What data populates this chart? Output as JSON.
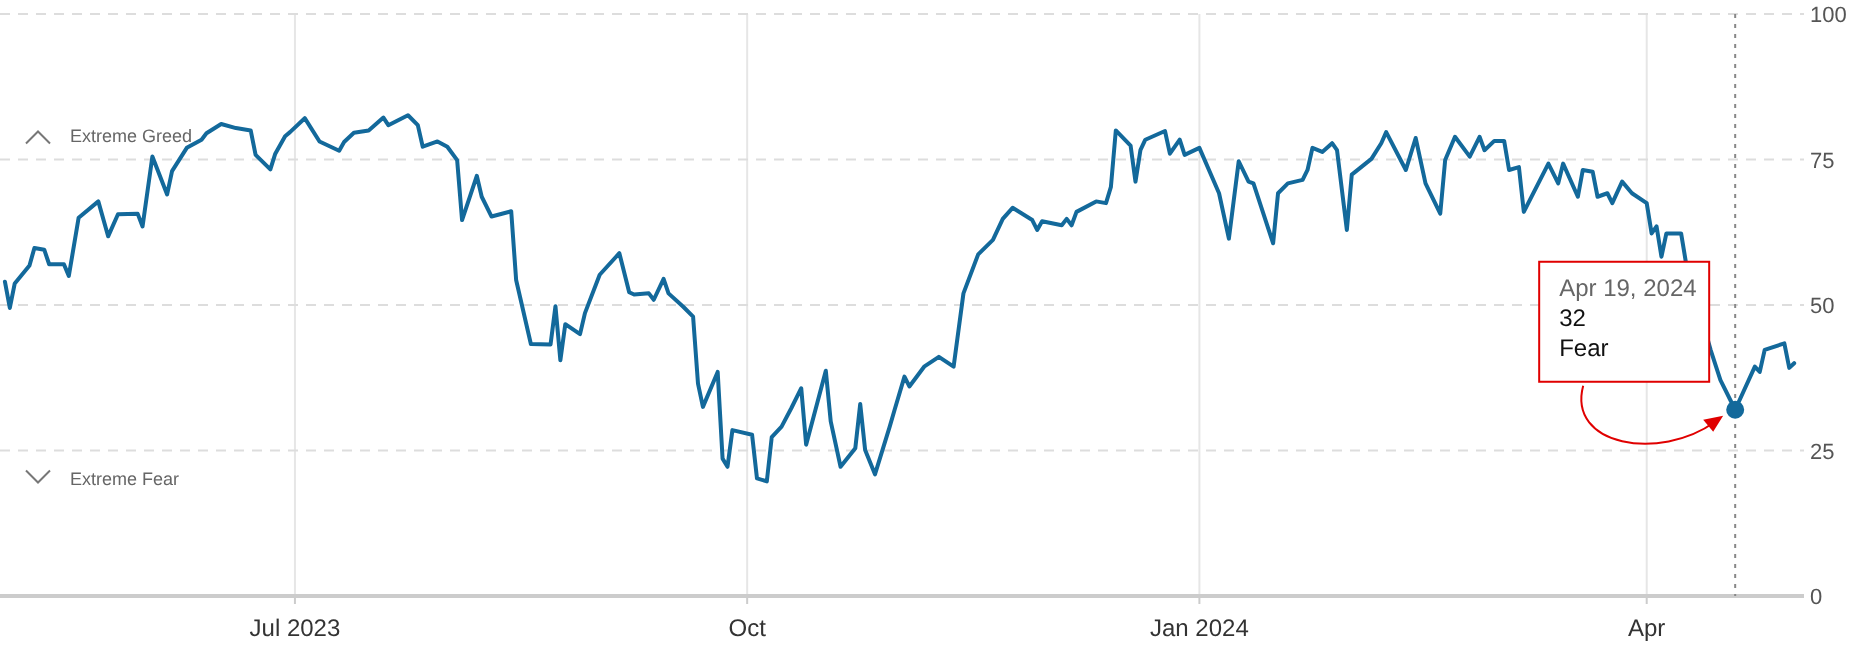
{
  "chart_data": {
    "type": "line",
    "xlim": [
      "2023-05-02",
      "2024-05-03"
    ],
    "ylim": [
      0,
      100
    ],
    "xticks": [
      {
        "value": "2023-07-01",
        "label": "Jul 2023"
      },
      {
        "value": "2023-10-01",
        "label": "Oct"
      },
      {
        "value": "2024-01-01",
        "label": "Jan 2024"
      },
      {
        "value": "2024-04-01",
        "label": "Apr"
      }
    ],
    "yticks": [
      0,
      25,
      50,
      75,
      100
    ],
    "grid": true,
    "marker": "none",
    "line_style": "solid",
    "series": [
      {
        "color": "#13699b",
        "x": [
          "2023-05-03",
          "2023-05-04",
          "2023-05-05",
          "2023-05-08",
          "2023-05-09",
          "2023-05-11",
          "2023-05-12",
          "2023-05-15",
          "2023-05-16",
          "2023-05-18",
          "2023-05-22",
          "2023-05-24",
          "2023-05-26",
          "2023-05-30",
          "2023-05-31",
          "2023-06-02",
          "2023-06-05",
          "2023-06-06",
          "2023-06-09",
          "2023-06-12",
          "2023-06-13",
          "2023-06-16",
          "2023-06-19",
          "2023-06-22",
          "2023-06-23",
          "2023-06-26",
          "2023-06-27",
          "2023-06-29",
          "2023-06-30",
          "2023-07-03",
          "2023-07-06",
          "2023-07-10",
          "2023-07-11",
          "2023-07-13",
          "2023-07-16",
          "2023-07-19",
          "2023-07-20",
          "2023-07-24",
          "2023-07-26",
          "2023-07-27",
          "2023-07-30",
          "2023-08-01",
          "2023-08-03",
          "2023-08-04",
          "2023-08-07",
          "2023-08-08",
          "2023-08-10",
          "2023-08-14",
          "2023-08-15",
          "2023-08-18",
          "2023-08-22",
          "2023-08-23",
          "2023-08-24",
          "2023-08-25",
          "2023-08-28",
          "2023-08-29",
          "2023-09-01",
          "2023-09-05",
          "2023-09-07",
          "2023-09-08",
          "2023-09-11",
          "2023-09-12",
          "2023-09-14",
          "2023-09-15",
          "2023-09-18",
          "2023-09-20",
          "2023-09-21",
          "2023-09-22",
          "2023-09-25",
          "2023-09-26",
          "2023-09-27",
          "2023-09-28",
          "2023-10-02",
          "2023-10-03",
          "2023-10-05",
          "2023-10-06",
          "2023-10-08",
          "2023-10-10",
          "2023-10-12",
          "2023-10-13",
          "2023-10-17",
          "2023-10-18",
          "2023-10-20",
          "2023-10-23",
          "2023-10-24",
          "2023-10-25",
          "2023-10-27",
          "2023-10-30",
          "2023-10-31",
          "2023-11-02",
          "2023-11-03",
          "2023-11-06",
          "2023-11-09",
          "2023-11-12",
          "2023-11-14",
          "2023-11-17",
          "2023-11-20",
          "2023-11-22",
          "2023-11-24",
          "2023-11-28",
          "2023-11-29",
          "2023-11-30",
          "2023-12-04",
          "2023-12-05",
          "2023-12-06",
          "2023-12-07",
          "2023-12-11",
          "2023-12-13",
          "2023-12-14",
          "2023-12-15",
          "2023-12-18",
          "2023-12-19",
          "2023-12-20",
          "2023-12-21",
          "2023-12-25",
          "2023-12-26",
          "2023-12-28",
          "2023-12-29",
          "2024-01-01",
          "2024-01-05",
          "2024-01-07",
          "2024-01-09",
          "2024-01-11",
          "2024-01-12",
          "2024-01-16",
          "2024-01-17",
          "2024-01-19",
          "2024-01-22",
          "2024-01-23",
          "2024-01-24",
          "2024-01-26",
          "2024-01-28",
          "2024-01-29",
          "2024-01-31",
          "2024-02-01",
          "2024-02-05",
          "2024-02-07",
          "2024-02-08",
          "2024-02-12",
          "2024-02-14",
          "2024-02-16",
          "2024-02-19",
          "2024-02-20",
          "2024-02-22",
          "2024-02-25",
          "2024-02-27",
          "2024-02-28",
          "2024-03-01",
          "2024-03-03",
          "2024-03-04",
          "2024-03-06",
          "2024-03-07",
          "2024-03-12",
          "2024-03-14",
          "2024-03-15",
          "2024-03-18",
          "2024-03-19",
          "2024-03-21",
          "2024-03-22",
          "2024-03-24",
          "2024-03-25",
          "2024-03-27",
          "2024-03-29",
          "2024-04-01",
          "2024-04-02",
          "2024-04-03",
          "2024-04-04",
          "2024-04-05",
          "2024-04-08",
          "2024-04-09",
          "2024-04-14",
          "2024-04-16",
          "2024-04-19",
          "2024-04-23",
          "2024-04-24",
          "2024-04-25",
          "2024-04-29",
          "2024-04-30",
          "2024-05-01"
        ],
        "values": [
          54,
          49.5,
          53.7,
          56.8,
          59.8,
          59.5,
          57,
          57,
          55,
          65,
          67.8,
          61.8,
          65.6,
          65.7,
          63.5,
          75.5,
          69,
          73,
          77,
          78.4,
          79.5,
          81.1,
          80.4,
          80,
          75.8,
          73.3,
          76,
          79,
          79.7,
          82.1,
          78.1,
          76.5,
          78,
          79.6,
          80,
          82.2,
          80.9,
          82.6,
          80.9,
          77.2,
          78.1,
          77.2,
          74.9,
          64.6,
          72.2,
          68.6,
          65.2,
          66.1,
          54.3,
          43.3,
          43.2,
          49.8,
          40.5,
          46.7,
          45,
          48.6,
          55.2,
          58.9,
          52.2,
          51.8,
          52,
          50.9,
          54.5,
          52,
          49.7,
          48,
          36.5,
          32.5,
          38.5,
          23.6,
          22.2,
          28.5,
          27.7,
          20.2,
          19.7,
          27.3,
          29.1,
          32.3,
          35.7,
          26,
          38.7,
          30,
          22.2,
          25.4,
          33,
          25.1,
          20.9,
          29.1,
          32,
          37.7,
          36,
          39.4,
          41.1,
          39.4,
          52,
          58.7,
          61.2,
          64.8,
          66.7,
          64.6,
          62.9,
          64.4,
          63.7,
          64.8,
          63.7,
          66,
          67.8,
          67.5,
          70.3,
          80,
          77.4,
          71.2,
          76.6,
          78.4,
          79.9,
          76,
          78.4,
          75.8,
          77,
          69.2,
          61.4,
          74.7,
          71.2,
          70.9,
          60.6,
          69.2,
          70.9,
          71.5,
          73.2,
          77,
          76.3,
          77.8,
          76.6,
          62.9,
          72.4,
          75.1,
          77.8,
          79.7,
          73.2,
          78.7,
          70.9,
          65.7,
          74.9,
          78.9,
          75.5,
          78.9,
          76.6,
          78.2,
          78.2,
          73.2,
          73.7,
          66,
          74.3,
          70.9,
          74.3,
          68.6,
          73.2,
          72.9,
          68.6,
          69.2,
          67.5,
          71.2,
          69.2,
          67.5,
          62.3,
          63.5,
          58.3,
          62.3,
          62.3,
          57.2,
          42.3,
          37.1,
          32,
          39.4,
          38.5,
          42.3,
          43.4,
          39.2,
          40
        ]
      },
      {
        "type": "scatter",
        "color": "#13699b",
        "marker": "circle",
        "x": [
          "2024-04-19"
        ],
        "values": [
          32
        ]
      }
    ],
    "ref_lines": [
      {
        "axis": "x",
        "value": "2024-04-19",
        "color": "#888888",
        "line_style": "dotted"
      }
    ],
    "annotations": [
      "Extreme Greed",
      "Extreme Fear",
      {
        "text": "Apr 19, 2024\n32\nFear",
        "x": "2024-04-19",
        "y": 32
      }
    ]
  }
}
